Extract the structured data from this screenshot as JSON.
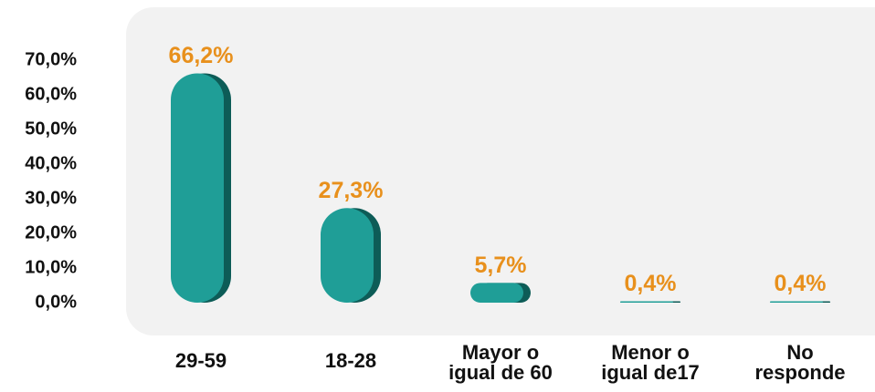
{
  "chart_data": {
    "type": "bar",
    "categories": [
      "29-59",
      "18-28",
      "Mayor o igual de 60",
      "Menor o igual de17",
      "No responde"
    ],
    "values": [
      66.2,
      27.3,
      5.7,
      0.4,
      0.4
    ],
    "value_labels": [
      "66,2%",
      "27,3%",
      "5,7%",
      "0,4%",
      "0,4%"
    ],
    "color": "#1f9e97",
    "shadow_color": "#0d5c57",
    "label_color": "#e8901c",
    "ylim": [
      0,
      70
    ],
    "yticks": [
      {
        "value": 0,
        "label": "0,0%"
      },
      {
        "value": 10,
        "label": "10,0%"
      },
      {
        "value": 20,
        "label": "20,0%"
      },
      {
        "value": 30,
        "label": "30,0%"
      },
      {
        "value": 40,
        "label": "40,0%"
      },
      {
        "value": 50,
        "label": "50,0%"
      },
      {
        "value": 60,
        "label": "60,0%"
      },
      {
        "value": 70,
        "label": "70,0%"
      }
    ],
    "grid": false
  }
}
